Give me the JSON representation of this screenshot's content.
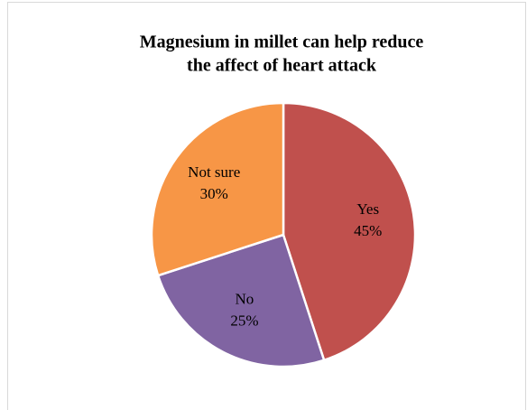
{
  "chart_data": {
    "type": "pie",
    "title": [
      "Magnesium in millet can help reduce",
      "the affect of heart attack"
    ],
    "categories": [
      "Yes",
      "No",
      "Not sure"
    ],
    "values": [
      45,
      25,
      30
    ],
    "value_labels": [
      "45%",
      "25%",
      "30%"
    ],
    "colors": [
      "#c0504d",
      "#8064a2",
      "#f79646"
    ]
  }
}
